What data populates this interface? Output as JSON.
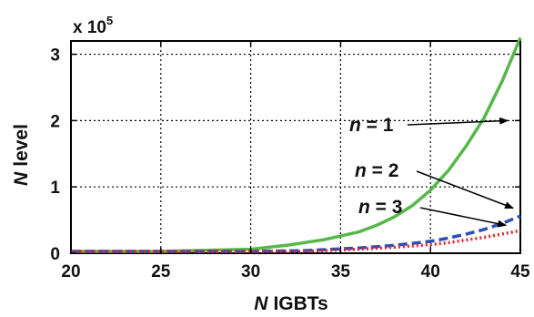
{
  "chart_data": {
    "type": "line",
    "title": "",
    "xlabel_prefix": "N",
    "xlabel_suffix": "IGBTs",
    "ylabel_prefix": "N",
    "ylabel_suffix": "level",
    "y_multiplier_base": "x 10",
    "y_multiplier_exp": "5",
    "xlim": [
      20,
      45
    ],
    "ylim": [
      0,
      3.2
    ],
    "x_ticks": [
      20,
      25,
      30,
      35,
      40,
      45
    ],
    "y_ticks": [
      0,
      1,
      2,
      3
    ],
    "grid": true,
    "series": [
      {
        "name": "n = 1",
        "color": "#55b848",
        "style": "solid",
        "x": [
          20,
          25,
          30,
          32,
          34,
          36,
          37,
          38,
          39,
          40,
          41,
          42,
          43,
          44,
          45
        ],
        "y": [
          0.0,
          0.01,
          0.06,
          0.12,
          0.2,
          0.32,
          0.42,
          0.55,
          0.72,
          0.95,
          1.25,
          1.62,
          2.05,
          2.6,
          3.25
        ]
      },
      {
        "name": "n = 2",
        "color": "#2a4fb8",
        "style": "dashed",
        "x": [
          20,
          25,
          30,
          33,
          36,
          38,
          40,
          41,
          42,
          43,
          44,
          45
        ],
        "y": [
          0.0,
          0.005,
          0.02,
          0.04,
          0.08,
          0.12,
          0.18,
          0.23,
          0.29,
          0.36,
          0.45,
          0.56
        ]
      },
      {
        "name": "n = 3",
        "color": "#e8242a",
        "style": "dotted",
        "x": [
          20,
          25,
          30,
          33,
          36,
          38,
          40,
          41,
          42,
          43,
          44,
          45
        ],
        "y": [
          0.0,
          0.004,
          0.015,
          0.03,
          0.06,
          0.09,
          0.13,
          0.16,
          0.2,
          0.24,
          0.29,
          0.34
        ]
      }
    ],
    "annotations": [
      {
        "series": "n = 1",
        "text_n": "n",
        "text_eq": " = 1",
        "point": [
          44.3,
          2.0
        ]
      },
      {
        "series": "n = 2",
        "text_n": "n",
        "text_eq": " = 2",
        "point": [
          44.6,
          0.68
        ]
      },
      {
        "series": "n = 3",
        "text_n": "n",
        "text_eq": " = 3",
        "point": [
          44.2,
          0.42
        ]
      }
    ]
  }
}
